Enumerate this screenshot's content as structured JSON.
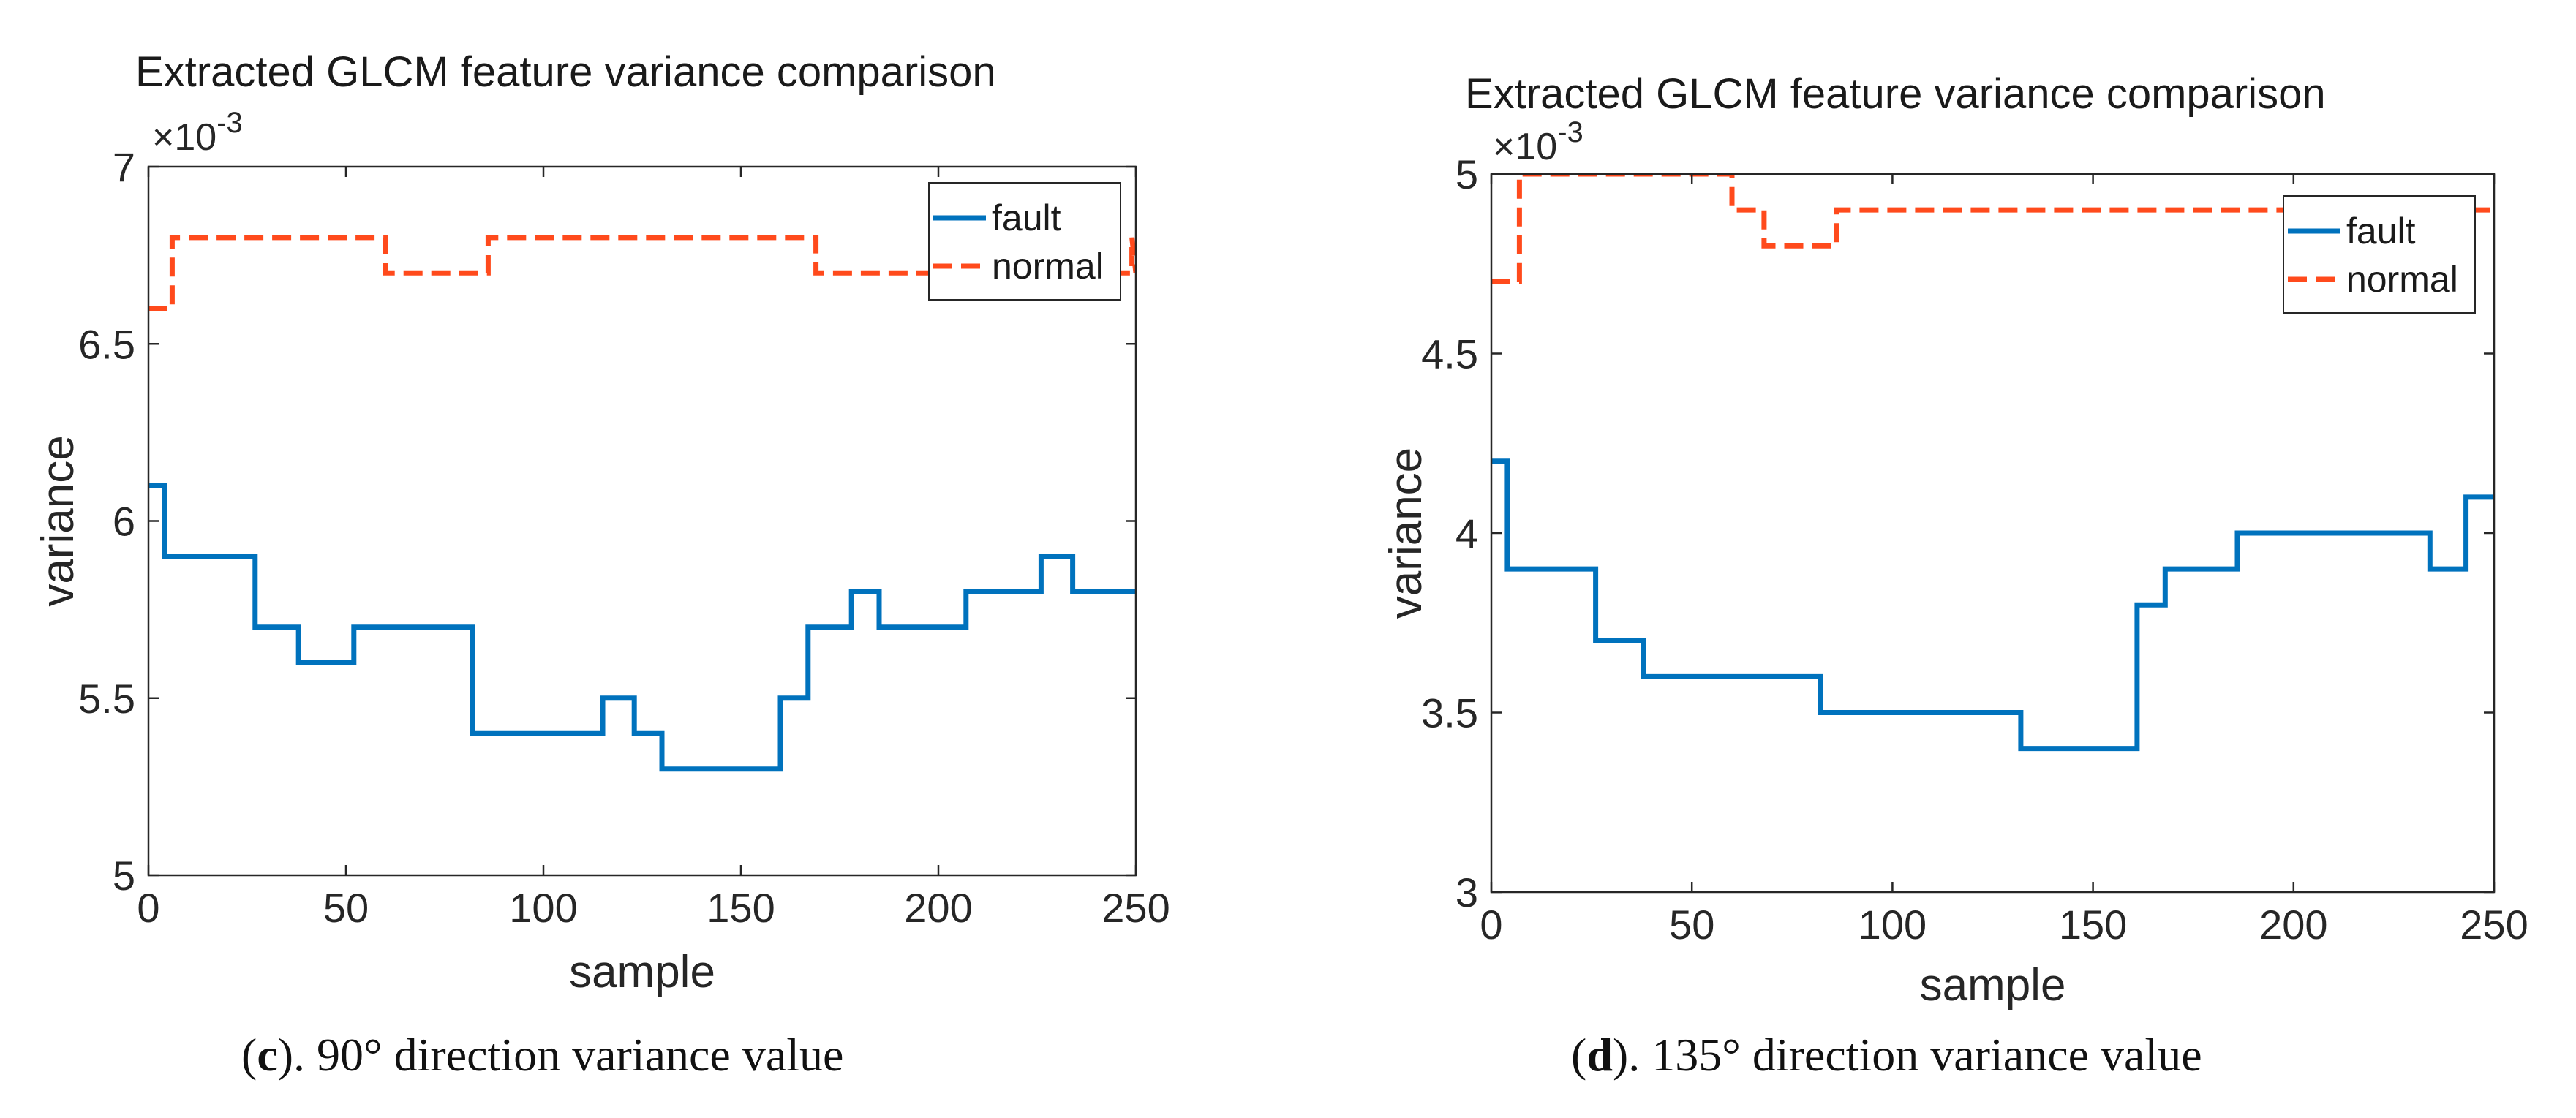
{
  "chart_data": [
    {
      "type": "line",
      "title": "Extracted GLCM feature variance comparison",
      "xlabel": "sample",
      "ylabel": "variance",
      "multiplier_label": "×10",
      "multiplier_exp": "-3",
      "xlim": [
        0,
        250
      ],
      "ylim": [
        5,
        7
      ],
      "xticks": [
        0,
        50,
        100,
        150,
        200,
        250
      ],
      "yticks": [
        5,
        5.5,
        6,
        6.5,
        7
      ],
      "xtick_labels": [
        "0",
        "50",
        "100",
        "150",
        "200",
        "250"
      ],
      "ytick_labels": [
        "5",
        "5.5",
        "6",
        "6.5",
        "7"
      ],
      "legend_position": "top-right",
      "caption_label": "c",
      "caption_text": ". 90° direction variance value",
      "series": [
        {
          "name": "fault",
          "color": "#0072BD",
          "dash": "solid",
          "x": [
            0,
            4,
            4,
            27,
            27,
            38,
            38,
            52,
            52,
            82,
            82,
            115,
            115,
            123,
            123,
            130,
            130,
            160,
            160,
            167,
            167,
            178,
            178,
            185,
            185,
            207,
            207,
            226,
            226,
            234,
            234,
            250
          ],
          "y": [
            6.1,
            6.1,
            5.9,
            5.9,
            5.7,
            5.7,
            5.6,
            5.6,
            5.7,
            5.7,
            5.4,
            5.4,
            5.5,
            5.5,
            5.4,
            5.4,
            5.3,
            5.3,
            5.5,
            5.5,
            5.7,
            5.7,
            5.8,
            5.8,
            5.7,
            5.7,
            5.8,
            5.8,
            5.9,
            5.9,
            5.8,
            5.8
          ]
        },
        {
          "name": "normal",
          "color": "#FF4A1C",
          "dash": "dashed",
          "x": [
            0,
            6,
            6,
            60,
            60,
            86,
            86,
            169,
            169,
            249,
            249,
            250
          ],
          "y": [
            6.6,
            6.6,
            6.8,
            6.8,
            6.7,
            6.7,
            6.8,
            6.8,
            6.7,
            6.7,
            6.8,
            6.7
          ]
        }
      ]
    },
    {
      "type": "line",
      "title": "Extracted GLCM feature variance comparison",
      "xlabel": "sample",
      "ylabel": "variance",
      "multiplier_label": "×10",
      "multiplier_exp": "-3",
      "xlim": [
        0,
        250
      ],
      "ylim": [
        3,
        5
      ],
      "xticks": [
        0,
        50,
        100,
        150,
        200,
        250
      ],
      "yticks": [
        3,
        3.5,
        4,
        4.5,
        5
      ],
      "xtick_labels": [
        "0",
        "50",
        "100",
        "150",
        "200",
        "250"
      ],
      "ytick_labels": [
        "3",
        "3.5",
        "4",
        "4.5",
        "5"
      ],
      "legend_position": "top-right",
      "caption_label": "d",
      "caption_text": ". 135° direction variance value",
      "series": [
        {
          "name": "fault",
          "color": "#0072BD",
          "dash": "solid",
          "x": [
            0,
            4,
            4,
            26,
            26,
            38,
            38,
            82,
            82,
            132,
            132,
            161,
            161,
            168,
            168,
            186,
            186,
            234,
            234,
            243,
            243,
            250
          ],
          "y": [
            4.2,
            4.2,
            3.9,
            3.9,
            3.7,
            3.7,
            3.6,
            3.6,
            3.5,
            3.5,
            3.4,
            3.4,
            3.8,
            3.8,
            3.9,
            3.9,
            4.0,
            4.0,
            3.9,
            3.9,
            4.1,
            4.1
          ]
        },
        {
          "name": "normal",
          "color": "#FF4A1C",
          "dash": "dashed",
          "x": [
            0,
            7,
            7,
            60,
            60,
            68,
            68,
            86,
            86,
            250
          ],
          "y": [
            4.7,
            4.7,
            5.0,
            5.0,
            4.9,
            4.9,
            4.8,
            4.8,
            4.9,
            4.9
          ]
        }
      ]
    }
  ]
}
